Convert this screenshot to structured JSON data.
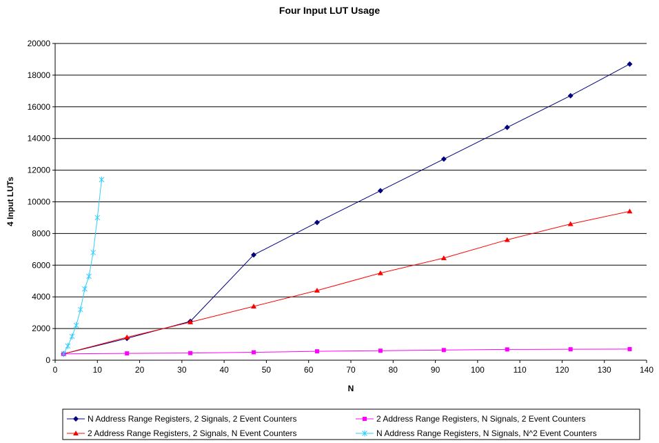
{
  "chart_data": {
    "type": "line",
    "title": "Four Input LUT Usage",
    "xlabel": "N",
    "ylabel": "4 Input LUTs",
    "xlim": [
      0,
      140
    ],
    "ylim": [
      0,
      20000
    ],
    "x_ticks": [
      0,
      10,
      20,
      30,
      40,
      50,
      60,
      70,
      80,
      90,
      100,
      110,
      120,
      130,
      140
    ],
    "y_ticks": [
      0,
      2000,
      4000,
      6000,
      8000,
      10000,
      12000,
      14000,
      16000,
      18000,
      20000
    ],
    "grid": "horizontal",
    "legend_position": "bottom",
    "series": [
      {
        "name": "N Address Range Registers, 2 Signals, 2 Event Counters",
        "color": "#000080",
        "marker": "diamond",
        "x": [
          2,
          17,
          32,
          47,
          62,
          77,
          92,
          107,
          122,
          136
        ],
        "y": [
          400,
          1380,
          2450,
          6650,
          8700,
          10700,
          12700,
          14700,
          16700,
          18700
        ]
      },
      {
        "name": "2 Address Range Registers, 2 Signals, N Event Counters",
        "color": "#FF0000",
        "marker": "triangle",
        "x": [
          2,
          17,
          32,
          47,
          62,
          77,
          92,
          107,
          122,
          136
        ],
        "y": [
          400,
          1450,
          2400,
          3400,
          4400,
          5500,
          6450,
          7600,
          8600,
          9400
        ]
      },
      {
        "name": "2 Address Range Registers, N Signals, 2 Event Counters",
        "color": "#FF00FF",
        "marker": "square",
        "x": [
          2,
          17,
          32,
          47,
          62,
          77,
          92,
          107,
          122,
          136
        ],
        "y": [
          400,
          430,
          450,
          500,
          560,
          600,
          640,
          680,
          690,
          700
        ]
      },
      {
        "name": "N Address Range Registers, N Signals, N^2 Event Counters",
        "color": "#33CCFF",
        "marker": "star",
        "x": [
          2,
          3,
          4,
          5,
          6,
          7,
          8,
          9,
          10,
          11
        ],
        "y": [
          400,
          900,
          1500,
          2200,
          3200,
          4500,
          5300,
          6800,
          9000,
          11400
        ]
      }
    ]
  }
}
